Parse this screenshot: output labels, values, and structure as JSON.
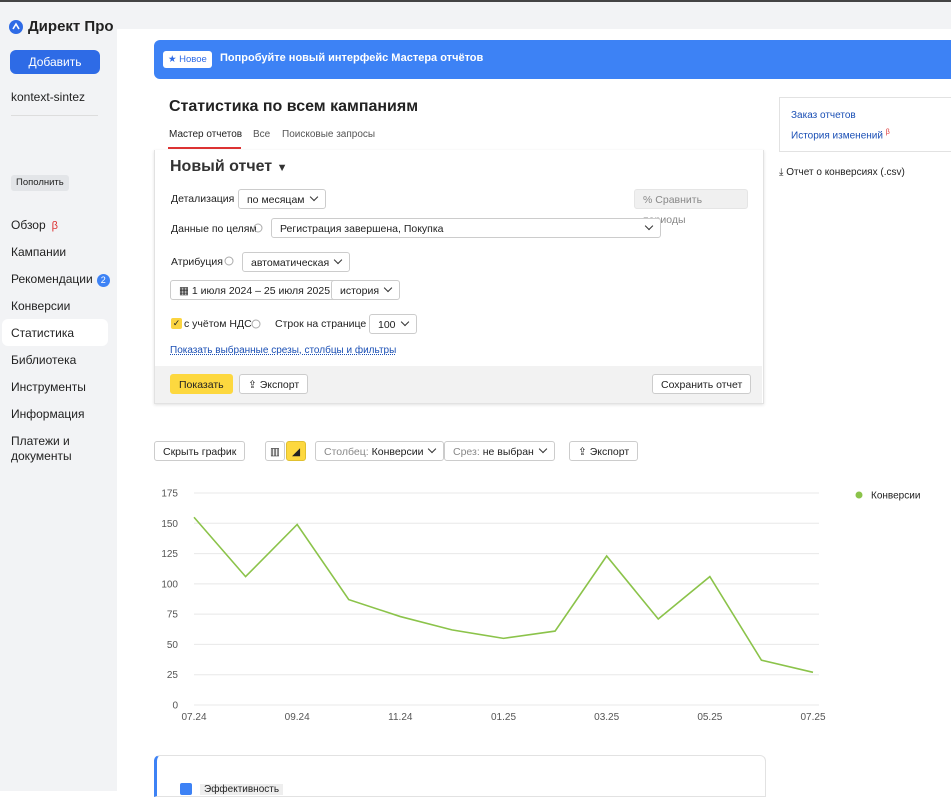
{
  "sidebar": {
    "logo": "Директ Про",
    "add_button": "Добавить",
    "account": "kontext-sintez",
    "topup": "Пополнить",
    "menu": [
      {
        "label": "Обзор",
        "badge": "β"
      },
      {
        "label": "Кампании"
      },
      {
        "label": "Рекомендации",
        "badge": "2"
      },
      {
        "label": "Конверсии"
      },
      {
        "label": "Статистика"
      },
      {
        "label": "Библиотека"
      },
      {
        "label": "Инструменты"
      },
      {
        "label": "Информация"
      },
      {
        "label": "Платежи и документы"
      }
    ]
  },
  "banner": {
    "tag": "Новое",
    "text": "Попробуйте новый интерфейс Мастера отчётов"
  },
  "header": {
    "title": "Статистика по всем кампаниям",
    "tabs": [
      "Мастер отчетов",
      "Все",
      "Поисковые запросы"
    ]
  },
  "side_links": {
    "order": "Заказ отчетов",
    "history": "История изменений",
    "history_badge": "β",
    "csv": "Отчет о конверсиях (.csv)"
  },
  "form": {
    "report_name": "Новый отчет",
    "detail_label": "Детализация",
    "detail_value": "по месяцам",
    "compare": "Сравнить периоды",
    "goals_label": "Данные по целям",
    "goals_value": "Регистрация завершена, Покупка",
    "attribution_label": "Атрибуция",
    "attribution_value": "автоматическая",
    "period": "1 июля 2024 – 25 июля 2025",
    "period_mode": "история",
    "vat": "с учётом НДС",
    "rows_label": "Строк на странице",
    "rows_value": "100",
    "show_slices": "Показать выбранные срезы, столбцы и фильтры",
    "show": "Показать",
    "export": "Экспорт",
    "save": "Сохранить отчет"
  },
  "chart_toolbar": {
    "hide": "Скрыть график",
    "column_label": "Столбец:",
    "column_value": "Конверсии",
    "slice_label": "Срез:",
    "slice_value": "не выбран",
    "export": "Экспорт"
  },
  "bottom_card": {
    "title": "Эффективность"
  },
  "chart_data": {
    "type": "line",
    "categories": [
      "07.24",
      null,
      "09.24",
      null,
      "11.24",
      null,
      "01.25",
      null,
      "03.25",
      null,
      "05.25",
      null,
      "07.25"
    ],
    "series": [
      {
        "name": "Конверсии",
        "color": "#8bc34a",
        "values": [
          155,
          106,
          149,
          87,
          73,
          62,
          55,
          61,
          123,
          71,
          106,
          37,
          27
        ]
      }
    ],
    "ylim": [
      0,
      175
    ],
    "yticks": [
      0,
      25,
      50,
      75,
      100,
      125,
      150,
      175
    ],
    "grid": true,
    "legend": "right"
  }
}
